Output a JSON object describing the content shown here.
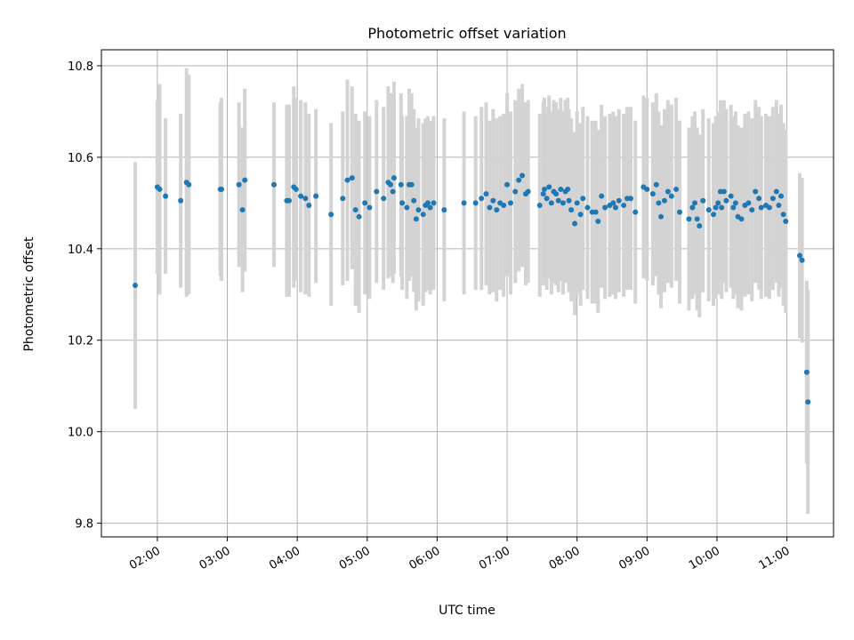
{
  "chart_data": {
    "type": "scatter",
    "title": "Photometric offset variation",
    "xlabel": "UTC time",
    "ylabel": "Photometric offset",
    "x_ticks": [
      "02:00",
      "03:00",
      "04:00",
      "05:00",
      "06:00",
      "07:00",
      "08:00",
      "09:00",
      "10:00",
      "11:00"
    ],
    "y_ticks": [
      "9.8",
      "10.0",
      "10.2",
      "10.4",
      "10.6",
      "10.8"
    ],
    "xlim": [
      "01:12",
      "11:40"
    ],
    "ylim": [
      9.77,
      10.835
    ],
    "grid": true,
    "errorbar_color": "#d3d3d3",
    "point_color": "#1f77b4",
    "series": [
      {
        "points": [
          [
            "01:41",
            10.32,
            0.27
          ],
          [
            "02:00",
            10.535,
            0.19
          ],
          [
            "02:02",
            10.53,
            0.23
          ],
          [
            "02:07",
            10.515,
            0.17
          ],
          [
            "02:20",
            10.505,
            0.19
          ],
          [
            "02:25",
            10.545,
            0.25
          ],
          [
            "02:27",
            10.54,
            0.24
          ],
          [
            "02:54",
            10.53,
            0.19
          ],
          [
            "02:55",
            10.53,
            0.2
          ],
          [
            "03:10",
            10.54,
            0.18
          ],
          [
            "03:13",
            10.485,
            0.18
          ],
          [
            "03:15",
            10.55,
            0.2
          ],
          [
            "03:40",
            10.54,
            0.18
          ],
          [
            "03:51",
            10.505,
            0.21
          ],
          [
            "03:53",
            10.505,
            0.21
          ],
          [
            "03:57",
            10.535,
            0.22
          ],
          [
            "03:59",
            10.53,
            0.2
          ],
          [
            "04:03",
            10.515,
            0.21
          ],
          [
            "04:07",
            10.51,
            0.21
          ],
          [
            "04:10",
            10.495,
            0.2
          ],
          [
            "04:16",
            10.515,
            0.19
          ],
          [
            "04:29",
            10.475,
            0.2
          ],
          [
            "04:39",
            10.51,
            0.19
          ],
          [
            "04:43",
            10.55,
            0.22
          ],
          [
            "04:47",
            10.555,
            0.2
          ],
          [
            "04:50",
            10.485,
            0.21
          ],
          [
            "04:53",
            10.47,
            0.21
          ],
          [
            "04:58",
            10.5,
            0.2
          ],
          [
            "05:02",
            10.49,
            0.2
          ],
          [
            "05:08",
            10.525,
            0.2
          ],
          [
            "05:14",
            10.51,
            0.2
          ],
          [
            "05:18",
            10.545,
            0.21
          ],
          [
            "05:20",
            10.54,
            0.2
          ],
          [
            "05:22",
            10.525,
            0.2
          ],
          [
            "05:23",
            10.555,
            0.21
          ],
          [
            "05:29",
            10.54,
            0.2
          ],
          [
            "05:30",
            10.5,
            0.19
          ],
          [
            "05:34",
            10.49,
            0.2
          ],
          [
            "05:36",
            10.54,
            0.21
          ],
          [
            "05:38",
            10.54,
            0.2
          ],
          [
            "05:40",
            10.505,
            0.2
          ],
          [
            "05:42",
            10.465,
            0.2
          ],
          [
            "05:44",
            10.485,
            0.2
          ],
          [
            "05:48",
            10.475,
            0.2
          ],
          [
            "05:50",
            10.495,
            0.19
          ],
          [
            "05:52",
            10.5,
            0.19
          ],
          [
            "05:54",
            10.49,
            0.19
          ],
          [
            "05:57",
            10.5,
            0.19
          ],
          [
            "06:06",
            10.485,
            0.2
          ],
          [
            "06:23",
            10.5,
            0.2
          ],
          [
            "06:33",
            10.5,
            0.19
          ],
          [
            "06:38",
            10.51,
            0.2
          ],
          [
            "06:42",
            10.52,
            0.2
          ],
          [
            "06:45",
            10.49,
            0.19
          ],
          [
            "06:48",
            10.505,
            0.2
          ],
          [
            "06:51",
            10.485,
            0.2
          ],
          [
            "06:54",
            10.5,
            0.19
          ],
          [
            "06:57",
            10.495,
            0.2
          ],
          [
            "07:00",
            10.54,
            0.2
          ],
          [
            "07:03",
            10.5,
            0.2
          ],
          [
            "07:07",
            10.525,
            0.2
          ],
          [
            "07:10",
            10.55,
            0.2
          ],
          [
            "07:13",
            10.56,
            0.2
          ],
          [
            "07:16",
            10.52,
            0.2
          ],
          [
            "07:18",
            10.525,
            0.2
          ],
          [
            "07:28",
            10.495,
            0.2
          ],
          [
            "07:31",
            10.52,
            0.2
          ],
          [
            "07:32",
            10.53,
            0.2
          ],
          [
            "07:34",
            10.51,
            0.2
          ],
          [
            "07:36",
            10.535,
            0.2
          ],
          [
            "07:38",
            10.5,
            0.2
          ],
          [
            "07:40",
            10.525,
            0.2
          ],
          [
            "07:42",
            10.52,
            0.2
          ],
          [
            "07:44",
            10.505,
            0.2
          ],
          [
            "07:46",
            10.53,
            0.2
          ],
          [
            "07:48",
            10.5,
            0.2
          ],
          [
            "07:50",
            10.525,
            0.2
          ],
          [
            "07:52",
            10.53,
            0.2
          ],
          [
            "07:53",
            10.505,
            0.2
          ],
          [
            "07:55",
            10.485,
            0.2
          ],
          [
            "07:58",
            10.455,
            0.2
          ],
          [
            "08:00",
            10.5,
            0.2
          ],
          [
            "08:03",
            10.475,
            0.2
          ],
          [
            "08:05",
            10.51,
            0.2
          ],
          [
            "08:09",
            10.49,
            0.2
          ],
          [
            "08:13",
            10.48,
            0.2
          ],
          [
            "08:16",
            10.48,
            0.2
          ],
          [
            "08:18",
            10.46,
            0.2
          ],
          [
            "08:21",
            10.515,
            0.2
          ],
          [
            "08:24",
            10.49,
            0.2
          ],
          [
            "08:28",
            10.495,
            0.2
          ],
          [
            "08:31",
            10.5,
            0.2
          ],
          [
            "08:33",
            10.49,
            0.2
          ],
          [
            "08:36",
            10.505,
            0.2
          ],
          [
            "08:40",
            10.495,
            0.2
          ],
          [
            "08:43",
            10.51,
            0.2
          ],
          [
            "08:46",
            10.51,
            0.2
          ],
          [
            "08:50",
            10.48,
            0.2
          ],
          [
            "08:57",
            10.535,
            0.2
          ],
          [
            "09:00",
            10.53,
            0.2
          ],
          [
            "09:05",
            10.52,
            0.2
          ],
          [
            "09:08",
            10.54,
            0.2
          ],
          [
            "09:10",
            10.5,
            0.2
          ],
          [
            "09:12",
            10.47,
            0.2
          ],
          [
            "09:15",
            10.505,
            0.2
          ],
          [
            "09:18",
            10.525,
            0.2
          ],
          [
            "09:21",
            10.515,
            0.2
          ],
          [
            "09:25",
            10.53,
            0.2
          ],
          [
            "09:28",
            10.48,
            0.2
          ],
          [
            "09:36",
            10.465,
            0.2
          ],
          [
            "09:39",
            10.49,
            0.2
          ],
          [
            "09:41",
            10.5,
            0.2
          ],
          [
            "09:43",
            10.465,
            0.2
          ],
          [
            "09:45",
            10.45,
            0.2
          ],
          [
            "09:48",
            10.505,
            0.2
          ],
          [
            "09:53",
            10.485,
            0.2
          ],
          [
            "09:57",
            10.475,
            0.2
          ],
          [
            "09:59",
            10.49,
            0.2
          ],
          [
            "10:01",
            10.5,
            0.2
          ],
          [
            "10:03",
            10.525,
            0.2
          ],
          [
            "10:04",
            10.49,
            0.2
          ],
          [
            "10:06",
            10.525,
            0.2
          ],
          [
            "10:08",
            10.505,
            0.2
          ],
          [
            "10:12",
            10.515,
            0.2
          ],
          [
            "10:14",
            10.49,
            0.2
          ],
          [
            "10:16",
            10.5,
            0.2
          ],
          [
            "10:18",
            10.47,
            0.2
          ],
          [
            "10:21",
            10.465,
            0.2
          ],
          [
            "10:24",
            10.495,
            0.2
          ],
          [
            "10:27",
            10.5,
            0.2
          ],
          [
            "10:30",
            10.485,
            0.2
          ],
          [
            "10:33",
            10.525,
            0.2
          ],
          [
            "10:36",
            10.51,
            0.2
          ],
          [
            "10:38",
            10.49,
            0.2
          ],
          [
            "10:42",
            10.495,
            0.2
          ],
          [
            "10:45",
            10.49,
            0.2
          ],
          [
            "10:48",
            10.51,
            0.2
          ],
          [
            "10:51",
            10.525,
            0.2
          ],
          [
            "10:53",
            10.495,
            0.2
          ],
          [
            "10:55",
            10.515,
            0.2
          ],
          [
            "10:57",
            10.475,
            0.2
          ],
          [
            "10:59",
            10.46,
            0.2
          ],
          [
            "11:11",
            10.385,
            0.18
          ],
          [
            "11:13",
            10.375,
            0.18
          ],
          [
            "11:17",
            10.13,
            0.2
          ],
          [
            "11:18",
            10.065,
            0.245
          ]
        ]
      }
    ]
  }
}
